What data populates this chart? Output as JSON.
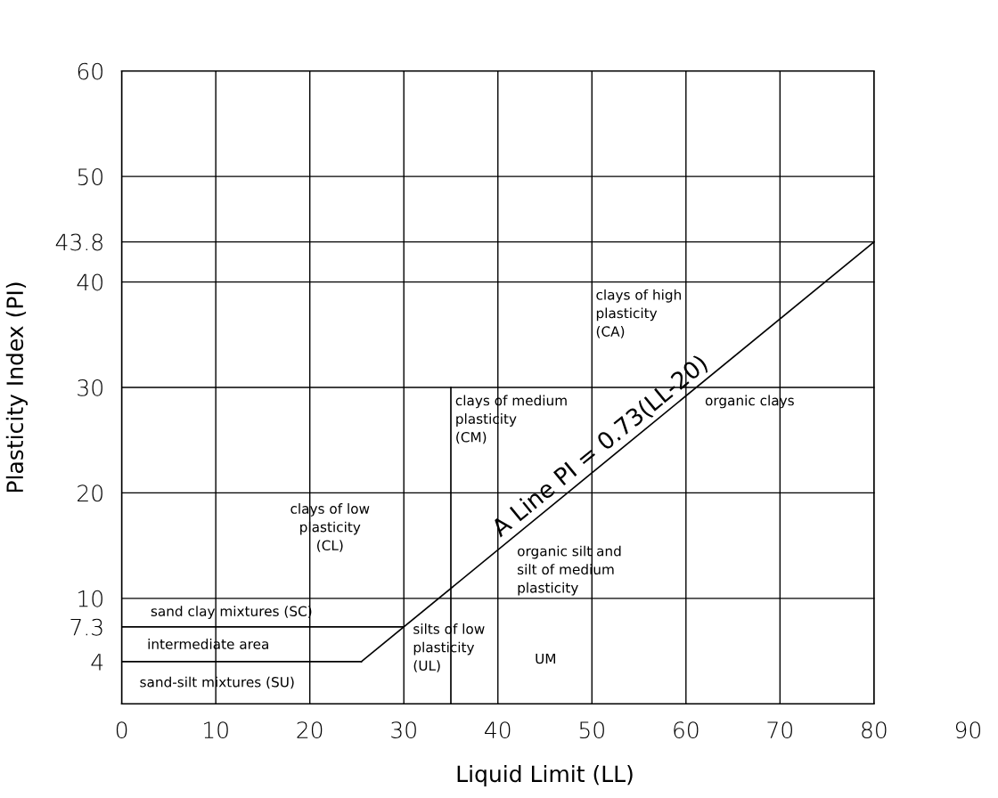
{
  "chart_data": {
    "type": "line",
    "xlabel": "Liquid Limit (LL)",
    "ylabel": "Plasticity Index (PI)",
    "xlim": [
      0,
      90
    ],
    "ylim": [
      0,
      60
    ],
    "xticks": [
      0,
      10,
      20,
      30,
      40,
      50,
      60,
      70,
      80,
      90
    ],
    "yticks": [
      4,
      7.3,
      10,
      20,
      30,
      40,
      43.8,
      50,
      60
    ],
    "grid": true,
    "marker": "none",
    "line_style": "solid",
    "ref_lines": [
      {
        "axis": "x",
        "value": 80,
        "color": "#000000"
      }
    ],
    "series": [
      {
        "color": "#000000",
        "x": [
          25.48,
          80
        ],
        "values": [
          4,
          43.8
        ]
      },
      {
        "color": "#000000",
        "x": [
          0,
          25.48
        ],
        "values": [
          4,
          4
        ]
      },
      {
        "color": "#000000",
        "x": [
          0,
          30
        ],
        "values": [
          7.3,
          7.3
        ]
      },
      {
        "color": "#000000",
        "x": [
          35,
          35
        ],
        "values": [
          0,
          30
        ]
      }
    ],
    "annotations": [
      {
        "text": "A Line PI = 0.73(LL-20)",
        "x": 40.6,
        "y": 15.4
      },
      "clays of high\nplasticity\n(CA)",
      "clays of medium\nplasticity\n(CM)",
      "organic clays",
      "clays of low\nplasticity\n(CL)",
      "organic silt and\nsilt of medium\nplasticity",
      "sand clay mixtures (SC)",
      "intermediate area",
      "sand-silt mixtures (SU)",
      "silts of low\nplasticity\n(UL)",
      "UM"
    ]
  }
}
